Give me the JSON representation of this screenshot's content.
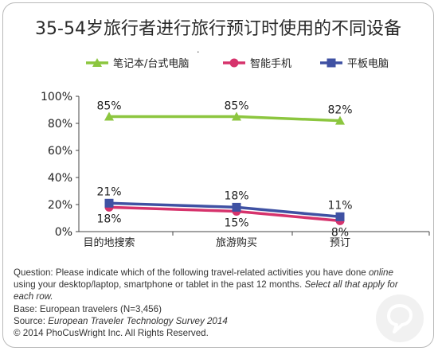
{
  "chart_data": {
    "type": "line",
    "title": "35-54岁旅行者进行旅行预订时使用的不同设备",
    "categories": [
      "目的地搜索",
      "旅游购买",
      "预订"
    ],
    "yticks": [
      "100%",
      "80%",
      "60%",
      "40%",
      "20%",
      "0%"
    ],
    "ylim": [
      0,
      100
    ],
    "grid": false,
    "legend_position": "top",
    "series": [
      {
        "name": "笔记本/台式电脑",
        "values": [
          85,
          85,
          82
        ],
        "labels": [
          "85%",
          "85%",
          "82%"
        ],
        "color": "#8cc63f",
        "marker": "triangle"
      },
      {
        "name": "智能手机",
        "values": [
          18,
          15,
          8
        ],
        "labels": [
          "18%",
          "15%",
          "8%"
        ],
        "color": "#d6336c",
        "marker": "circle"
      },
      {
        "name": "平板电脑",
        "values": [
          21,
          18,
          11
        ],
        "labels": [
          "21%",
          "18%",
          "11%"
        ],
        "color": "#3f51a3",
        "marker": "square"
      }
    ]
  },
  "notes": {
    "question_prefix": "Question: Please indicate which of the following travel-related activities you have done",
    "question_online": "online",
    "question_middle": " using your desktop/laptop, smartphone or tablet in the past 12 months. ",
    "question_select": "Select all that apply for each row.",
    "base": "Base: European travelers (N=3,456)",
    "source_prefix": "Source: ",
    "source_title": "European Traveler Technology Survey 2014",
    "copyright": "© 2014 PhoCusWright Inc. All Rights Reserved."
  },
  "logo": {
    "icon": "phocuswright-logo-icon"
  }
}
